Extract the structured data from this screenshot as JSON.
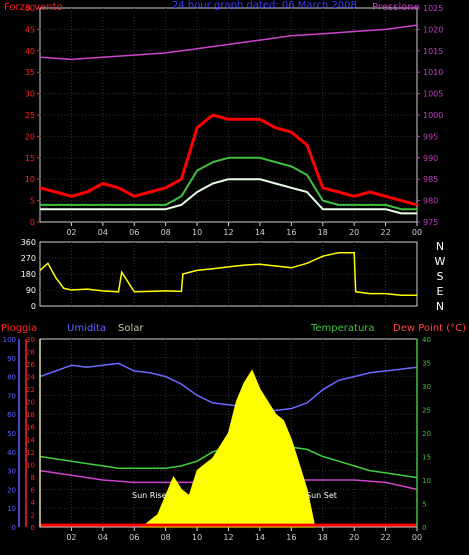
{
  "chart_data": [
    {
      "type": "line",
      "title": "24 hour graph dated: 06 March 2008",
      "x_ticks": [
        "02",
        "04",
        "06",
        "08",
        "10",
        "12",
        "14",
        "16",
        "18",
        "20",
        "22",
        "00"
      ],
      "left_axis": {
        "label": "Forza vento",
        "ticks": [
          0,
          5,
          10,
          15,
          20,
          25,
          30,
          35,
          40,
          45,
          50
        ],
        "range": [
          0,
          50
        ],
        "color": "#ff2020"
      },
      "right_axis": {
        "label": "Pressione",
        "ticks": [
          975,
          980,
          985,
          990,
          995,
          1000,
          1005,
          1010,
          1015,
          1020,
          1025
        ],
        "range": [
          975,
          1025
        ],
        "color": "#c040c0"
      },
      "series": [
        {
          "color": "#ff0000",
          "axis": "left",
          "x": [
            0,
            1,
            2,
            3,
            4,
            5,
            6,
            7,
            8,
            9,
            10,
            11,
            12,
            13,
            14,
            15,
            16,
            17,
            18,
            19,
            20,
            21,
            22,
            23,
            24
          ],
          "values": [
            8,
            7,
            6,
            7,
            9,
            8,
            6,
            7,
            8,
            10,
            22,
            25,
            24,
            24,
            24,
            22,
            21,
            18,
            8,
            7,
            6,
            7,
            6,
            5,
            4
          ]
        },
        {
          "color": "#40c040",
          "axis": "left",
          "x": [
            0,
            1,
            2,
            3,
            4,
            5,
            6,
            7,
            8,
            9,
            10,
            11,
            12,
            13,
            14,
            15,
            16,
            17,
            18,
            19,
            20,
            21,
            22,
            23,
            24
          ],
          "values": [
            4,
            4,
            4,
            4,
            4,
            4,
            4,
            4,
            4,
            6,
            12,
            14,
            15,
            15,
            15,
            14,
            13,
            11,
            5,
            4,
            4,
            4,
            4,
            3,
            3
          ]
        },
        {
          "color": "#e8ffe8",
          "axis": "left",
          "x": [
            0,
            1,
            2,
            3,
            4,
            5,
            6,
            7,
            8,
            9,
            10,
            11,
            12,
            13,
            14,
            15,
            16,
            17,
            18,
            19,
            20,
            21,
            22,
            23,
            24
          ],
          "values": [
            3,
            3,
            3,
            3,
            3,
            3,
            3,
            3,
            3,
            4,
            7,
            9,
            10,
            10,
            10,
            9,
            8,
            7,
            3,
            3,
            3,
            3,
            3,
            2,
            2
          ]
        },
        {
          "color": "#cc44cc",
          "axis": "right",
          "x": [
            0,
            2,
            4,
            6,
            8,
            10,
            12,
            14,
            16,
            18,
            20,
            22,
            24
          ],
          "values": [
            1013.5,
            1013.0,
            1013.5,
            1014.0,
            1014.5,
            1015.5,
            1016.5,
            1017.5,
            1018.5,
            1019.0,
            1019.5,
            1020.0,
            1021.0
          ]
        }
      ]
    },
    {
      "type": "line",
      "x_ticks": [
        "02",
        "04",
        "06",
        "08",
        "10",
        "12",
        "14",
        "16",
        "18",
        "20",
        "22",
        "00"
      ],
      "left_axis": {
        "ticks": [
          0,
          90,
          180,
          270,
          360
        ],
        "range": [
          0,
          360
        ],
        "color": "#ffffff"
      },
      "right_labels": [
        "N",
        "W",
        "S",
        "E",
        "N"
      ],
      "series": [
        {
          "color": "#ffff00",
          "x": [
            0,
            0.5,
            1,
            1.5,
            2,
            3,
            4,
            5,
            5.2,
            6,
            7,
            8,
            9,
            9.1,
            10,
            11,
            12,
            13,
            14,
            15,
            16,
            17,
            18,
            19,
            20,
            20.1,
            21,
            22,
            23,
            24
          ],
          "values": [
            200,
            240,
            160,
            100,
            90,
            95,
            85,
            80,
            190,
            80,
            82,
            85,
            82,
            180,
            200,
            210,
            220,
            230,
            235,
            225,
            215,
            240,
            280,
            300,
            300,
            80,
            70,
            70,
            60,
            60
          ]
        }
      ]
    },
    {
      "type": "area",
      "x_ticks": [
        "02",
        "04",
        "06",
        "08",
        "10",
        "12",
        "14",
        "16",
        "18",
        "20",
        "22",
        "00"
      ],
      "axes": [
        {
          "label": "Pioggia",
          "ticks": [
            0,
            2,
            4,
            6,
            8,
            10,
            12,
            14,
            16,
            18,
            20,
            22,
            24,
            26,
            28,
            30
          ],
          "range": [
            0,
            30
          ],
          "color": "#ff2020"
        },
        {
          "label": "Umidita",
          "ticks": [
            0,
            10,
            20,
            30,
            40,
            50,
            60,
            70,
            80,
            90,
            100
          ],
          "range": [
            0,
            100
          ],
          "color": "#6060ff"
        },
        {
          "label": "Solar",
          "ticks": [
            0,
            2,
            4,
            6,
            8,
            10,
            12,
            14,
            16,
            18,
            20,
            22,
            24,
            26,
            28,
            30
          ],
          "range": [
            0,
            30
          ],
          "color": "#c8c8a0"
        },
        {
          "label": "Temperatura",
          "ticks": [
            0,
            5,
            10,
            15,
            20,
            25,
            30,
            35,
            40
          ],
          "range": [
            0,
            40
          ],
          "color": "#40c040"
        },
        {
          "label": "Dew Point (°C)",
          "range": [
            0,
            40
          ],
          "color": "#ff4040"
        }
      ],
      "annotations": [
        "Sun Rise",
        "Sun Set"
      ],
      "series": [
        {
          "color": "#6a6aff",
          "axis": "Umidita",
          "x": [
            0,
            1,
            2,
            3,
            4,
            5,
            6,
            7,
            8,
            9,
            10,
            11,
            12,
            13,
            14,
            15,
            16,
            17,
            18,
            19,
            20,
            21,
            22,
            23,
            24
          ],
          "values": [
            80,
            83,
            86,
            85,
            86,
            87,
            83,
            82,
            80,
            76,
            70,
            66,
            65,
            64,
            62,
            62,
            63,
            66,
            73,
            78,
            80,
            82,
            83,
            84,
            85
          ]
        },
        {
          "color": "#40d040",
          "axis": "Temperatura",
          "x": [
            0,
            1,
            2,
            3,
            4,
            5,
            6,
            7,
            8,
            9,
            10,
            11,
            12,
            13,
            14,
            15,
            16,
            17,
            18,
            19,
            20,
            21,
            22,
            23,
            24
          ],
          "values": [
            15,
            14.5,
            14,
            13.5,
            13,
            12.5,
            12.5,
            12.5,
            12.5,
            13,
            14,
            16,
            17,
            18,
            18,
            17.5,
            17,
            16.5,
            15,
            14,
            13,
            12,
            11.5,
            11,
            10.5
          ]
        },
        {
          "color": "#cc44cc",
          "axis": "Dew Point (°C)",
          "x": [
            0,
            2,
            4,
            6,
            8,
            10,
            12,
            14,
            16,
            18,
            20,
            22,
            24
          ],
          "values": [
            12,
            11,
            10,
            9.5,
            9.5,
            9.5,
            10,
            10,
            10,
            10,
            10,
            9.5,
            8
          ]
        },
        {
          "color": "#ffff00",
          "axis": "Solar",
          "x": [
            6.5,
            7.5,
            8,
            8.5,
            9,
            9.5,
            10,
            10.5,
            11,
            11.5,
            12,
            12.5,
            13,
            13.5,
            14,
            14.5,
            15,
            15.5,
            16,
            16.5,
            17,
            17.5
          ],
          "values": [
            0,
            2,
            5,
            8,
            6,
            5,
            9,
            10,
            11,
            13,
            15,
            20,
            23,
            25,
            22,
            20,
            18,
            17,
            14,
            10,
            6,
            0
          ]
        },
        {
          "color": "#ff0000",
          "axis": "Pioggia",
          "x": [
            0,
            24
          ],
          "values": [
            0.3,
            0.3
          ]
        }
      ]
    }
  ]
}
